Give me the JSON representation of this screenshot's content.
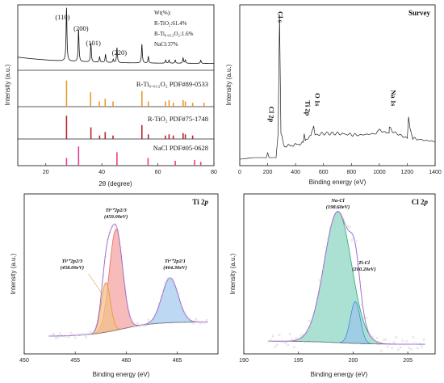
{
  "chart_data": [
    {
      "panel": "xrd",
      "type": "bar",
      "xlabel": "2θ (degree)",
      "ylabel": "Intensity (a.u.)",
      "xlim": [
        10,
        80
      ],
      "xticks": [
        20,
        40,
        60,
        80
      ],
      "peak_labels": [
        {
          "text": "(110)",
          "x": 27.4
        },
        {
          "text": "(200)",
          "x": 31.7
        },
        {
          "text": "(101)",
          "x": 36.1
        },
        {
          "text": "(220)",
          "x": 45.4
        }
      ],
      "composition": [
        "Wt(%):",
        "R-TiO₂:61.4%",
        "R-Ti₀.₉₁₂O₂:1.6%",
        "NaCl:37%"
      ],
      "pattern": {
        "baseline": 0.12,
        "peaks": [
          [
            27.4,
            1.0
          ],
          [
            31.7,
            0.6
          ],
          [
            36.1,
            0.35
          ],
          [
            39.2,
            0.1
          ],
          [
            41.3,
            0.15
          ],
          [
            44.1,
            0.06
          ],
          [
            45.4,
            0.28
          ],
          [
            54.3,
            0.35
          ],
          [
            56.6,
            0.12
          ],
          [
            62.8,
            0.06
          ],
          [
            64.0,
            0.06
          ],
          [
            66.2,
            0.06
          ],
          [
            69.0,
            0.1
          ],
          [
            69.8,
            0.06
          ],
          [
            75.3,
            0.06
          ]
        ]
      },
      "references": [
        {
          "label": "R-Ti₀.₉₁₂O₂ PDF#89-0533",
          "color": "#e69a2e",
          "sticks": [
            [
              27.4,
              1.0
            ],
            [
              36.0,
              0.55
            ],
            [
              39.1,
              0.2
            ],
            [
              41.2,
              0.3
            ],
            [
              44.0,
              0.2
            ],
            [
              54.3,
              0.6
            ],
            [
              56.6,
              0.2
            ],
            [
              62.7,
              0.2
            ],
            [
              64.0,
              0.25
            ],
            [
              65.5,
              0.15
            ],
            [
              69.0,
              0.25
            ],
            [
              69.8,
              0.2
            ],
            [
              72.4,
              0.15
            ],
            [
              76.5,
              0.15
            ]
          ]
        },
        {
          "label": "R-TiO₂ PDF#75-1748",
          "color": "#b8262b",
          "sticks": [
            [
              27.4,
              1.0
            ],
            [
              36.1,
              0.5
            ],
            [
              39.2,
              0.15
            ],
            [
              41.2,
              0.3
            ],
            [
              44.0,
              0.15
            ],
            [
              54.3,
              0.6
            ],
            [
              56.6,
              0.2
            ],
            [
              62.7,
              0.15
            ],
            [
              64.0,
              0.2
            ],
            [
              65.5,
              0.15
            ],
            [
              69.0,
              0.25
            ],
            [
              69.8,
              0.2
            ],
            [
              72.4,
              0.15
            ]
          ]
        },
        {
          "label": "NaCl PDF#05-0628",
          "color": "#e83e8c",
          "sticks": [
            [
              27.4,
              0.4
            ],
            [
              31.7,
              1.0
            ],
            [
              45.4,
              0.7
            ],
            [
              56.5,
              0.4
            ],
            [
              66.2,
              0.25
            ],
            [
              73.1,
              0.3
            ],
            [
              75.3,
              0.2
            ]
          ]
        }
      ]
    },
    {
      "panel": "survey",
      "type": "line",
      "title": "Survey",
      "xlabel": "Binding energy (eV)",
      "ylabel": "Intensity (a.u.)",
      "xlim": [
        0,
        1400
      ],
      "xticks": [
        0,
        200,
        400,
        600,
        800,
        1000,
        1200,
        1400
      ],
      "ylim": [
        0,
        1
      ],
      "x": [
        0,
        100,
        190,
        200,
        210,
        260,
        275,
        285,
        295,
        320,
        400,
        455,
        462,
        470,
        510,
        530,
        540,
        600,
        700,
        850,
        980,
        1000,
        1070,
        1072,
        1100,
        1200,
        1210,
        1220,
        1240,
        1300,
        1400
      ],
      "y": [
        0.04,
        0.05,
        0.05,
        0.08,
        0.05,
        0.05,
        0.2,
        0.94,
        0.2,
        0.12,
        0.13,
        0.14,
        0.19,
        0.15,
        0.19,
        0.25,
        0.19,
        0.2,
        0.2,
        0.19,
        0.2,
        0.22,
        0.2,
        0.24,
        0.21,
        0.17,
        0.3,
        0.24,
        0.17,
        0.16,
        0.15
      ],
      "peak_labels": [
        {
          "text": "Cl 2p",
          "x": 200
        },
        {
          "text": "Cl s",
          "x": 270
        },
        {
          "text": "Ti 2p",
          "x": 460
        },
        {
          "text": "O 1s",
          "x": 530
        },
        {
          "text": "Na 1s",
          "x": 1072
        }
      ]
    },
    {
      "panel": "ti2p",
      "type": "area",
      "title_main": "Ti 2",
      "title_italic": "p",
      "xlabel": "Binding energy (eV)",
      "ylabel": "Intensity (a.u.)",
      "xlim": [
        450,
        469
      ],
      "xticks": [
        450,
        455,
        460,
        465
      ],
      "ylim": [
        0,
        1
      ],
      "background": {
        "start": 0.11,
        "end": 0.2
      },
      "components": [
        {
          "center": 459.0,
          "sigma": 0.65,
          "height": 0.63,
          "color": "#e8646a",
          "fill": "#f4a5a3"
        },
        {
          "center": 458.0,
          "sigma": 0.45,
          "height": 0.31,
          "color": "#e59538",
          "fill": "#f3c089"
        },
        {
          "center": 464.3,
          "sigma": 0.8,
          "height": 0.28,
          "color": "#4a8fd0",
          "fill": "#a6cbef"
        }
      ],
      "labels": [
        {
          "line1": "Ti⁴⁺2p2/3",
          "line2": "(459.00eV)",
          "x": 459.0,
          "y": 0.89
        },
        {
          "line1": "Ti³⁺2p2/3",
          "line2": "(458.00eV)",
          "x": 454.7,
          "y": 0.57
        },
        {
          "line1": "Ti⁴⁺2p2/1",
          "line2": "(464.30eV)",
          "x": 464.8,
          "y": 0.57
        }
      ]
    },
    {
      "panel": "cl2p",
      "type": "area",
      "title_main": "Cl 2",
      "title_italic": "p",
      "xlabel": "Binding energy (eV)",
      "ylabel": "Intensity (a.u.)",
      "xlim": [
        190,
        207.5
      ],
      "xticks": [
        190,
        195,
        200,
        205
      ],
      "ylim": [
        0,
        1
      ],
      "background": {
        "start": 0.08,
        "end": 0.06
      },
      "components": [
        {
          "name": "Na-Cl",
          "center": 198.6,
          "sigma": 1.25,
          "height": 0.82,
          "color": "#2aa775",
          "fill": "#8fd7c3"
        },
        {
          "name": "Ti-Cl",
          "center": 200.2,
          "sigma": 0.45,
          "height": 0.26,
          "color": "#3e8ad0",
          "fill": "#9cc6ec"
        }
      ],
      "labels": [
        {
          "line1": "Na-Cl",
          "line2": "(198.60eV)",
          "x": 198.6,
          "y": 0.95
        },
        {
          "line1": "Ti-Cl",
          "line2": "(200.20eV)",
          "x": 201.0,
          "y": 0.56
        }
      ]
    }
  ]
}
